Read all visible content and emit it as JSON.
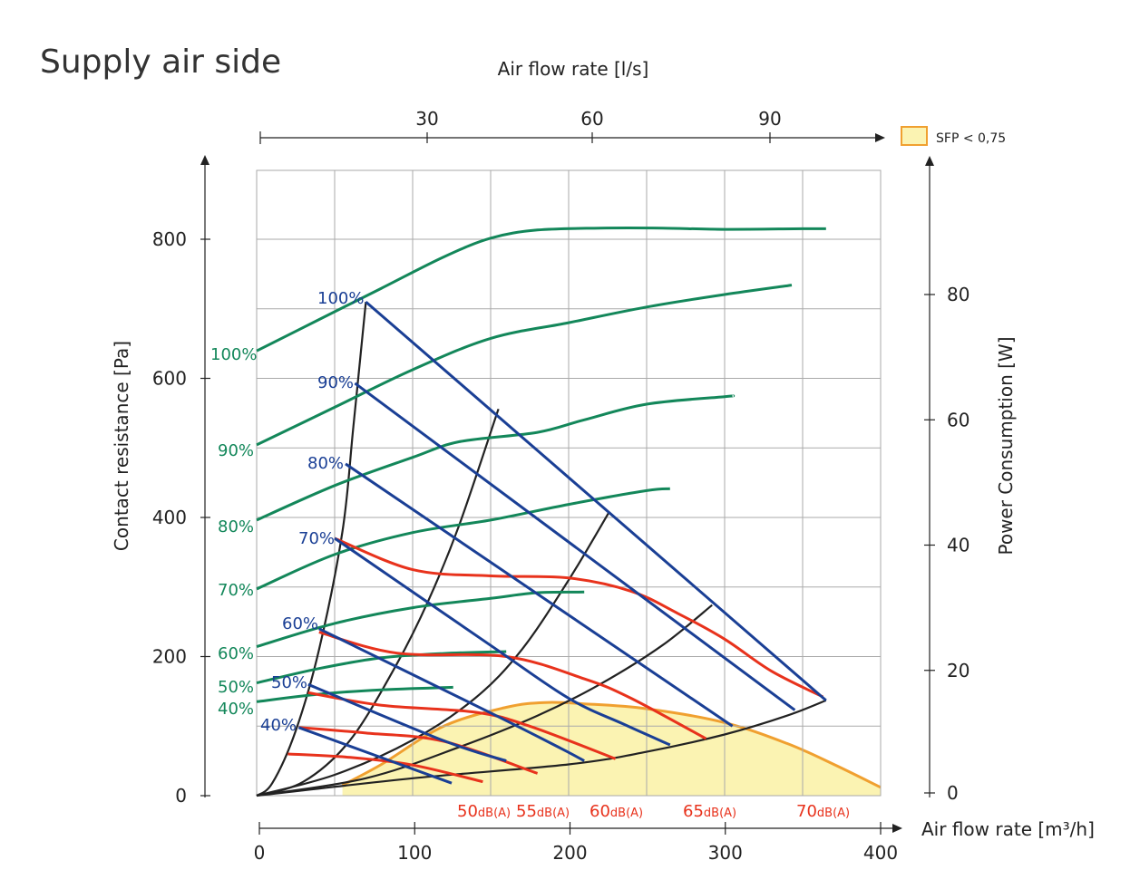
{
  "title": "Supply air side",
  "chart_data": {
    "type": "line",
    "title": "Supply air side",
    "xlabel_bottom": "Air flow rate [m³/h]",
    "xlabel_top": "Air flow rate [l/s]",
    "ylabel_left": "Contact resistance [Pa]",
    "ylabel_right": "Power Consumption [W]",
    "xlim": [
      0,
      400
    ],
    "ylim_left": [
      0,
      900
    ],
    "ylim_right": [
      0,
      100
    ],
    "x_ticks_bottom": [
      "0",
      "100",
      "200",
      "300",
      "400"
    ],
    "x_ticks_top": [
      "30",
      "60",
      "90"
    ],
    "y_ticks_left": [
      "0",
      "200",
      "400",
      "600",
      "800"
    ],
    "y_ticks_right": [
      "0",
      "20",
      "40",
      "60",
      "80"
    ],
    "grid": true,
    "legend": {
      "label": "SFP",
      "op": "<",
      "value": "0,75",
      "color": "#fbf3b2",
      "border": "#f0a030",
      "position": "top-right"
    },
    "colors": {
      "power": "#13875a",
      "pressure": "#1a3f95",
      "sound": "#e8321c",
      "system": "#222222",
      "sfp_fill": "#fbf3b2",
      "sfp_line": "#f0a030"
    },
    "power_series": [
      {
        "name": "100%",
        "axis": "right",
        "x": [
          0,
          40,
          80,
          120,
          150,
          180,
          220,
          260,
          300,
          350,
          365
        ],
        "y": [
          71,
          76,
          81,
          86,
          89,
          90.3,
          90.6,
          90.6,
          90.4,
          90.5,
          90.5
        ]
      },
      {
        "name": "90%",
        "axis": "right",
        "x": [
          0,
          50,
          100,
          150,
          200,
          250,
          300,
          343
        ],
        "y": [
          56,
          62,
          68,
          73,
          75.5,
          78,
          80,
          81.5
        ]
      },
      {
        "name": "80%",
        "axis": "right",
        "x": [
          0,
          50,
          100,
          130,
          180,
          210,
          250,
          300,
          305
        ],
        "y": [
          44,
          49.5,
          54,
          56.5,
          58,
          60,
          62.5,
          63.7,
          63.8
        ]
      },
      {
        "name": "70%",
        "axis": "right",
        "x": [
          0,
          50,
          100,
          150,
          200,
          250,
          265
        ],
        "y": [
          33,
          38.5,
          42,
          44,
          46.5,
          48.7,
          49
        ]
      },
      {
        "name": "60%",
        "axis": "right",
        "x": [
          0,
          50,
          100,
          150,
          180,
          210
        ],
        "y": [
          23.8,
          27.5,
          30,
          31.5,
          32.4,
          32.5
        ]
      },
      {
        "name": "50%",
        "axis": "right",
        "x": [
          0,
          40,
          80,
          120,
          160
        ],
        "y": [
          18,
          20.3,
          22,
          22.7,
          23
        ]
      },
      {
        "name": "40%",
        "axis": "right",
        "x": [
          0,
          40,
          80,
          126
        ],
        "y": [
          15,
          16.2,
          16.9,
          17.3
        ]
      }
    ],
    "pressure_series": [
      {
        "name": "100%",
        "axis": "left",
        "x": [
          70,
          365
        ],
        "y": [
          710,
          137
        ]
      },
      {
        "name": "90%",
        "axis": "left",
        "x": [
          63,
          345
        ],
        "y": [
          593,
          123
        ]
      },
      {
        "name": "80%",
        "axis": "left",
        "x": [
          57,
          305
        ],
        "y": [
          477,
          100
        ]
      },
      {
        "name": "70%",
        "axis": "left",
        "x": [
          50,
          150,
          200,
          235,
          265
        ],
        "y": [
          370,
          216,
          140,
          103,
          73
        ]
      },
      {
        "name": "60%",
        "axis": "left",
        "x": [
          40,
          150,
          195,
          210
        ],
        "y": [
          240,
          119,
          68,
          50
        ]
      },
      {
        "name": "50%",
        "axis": "left",
        "x": [
          33,
          120,
          160
        ],
        "y": [
          160,
          79,
          50
        ]
      },
      {
        "name": "40%",
        "axis": "left",
        "x": [
          27,
          125
        ],
        "y": [
          98,
          18
        ]
      }
    ],
    "sound_series": [
      {
        "name": "50dB(A)",
        "axis": "left",
        "x": [
          20,
          60,
          100,
          145
        ],
        "y": [
          60,
          55,
          44,
          20
        ]
      },
      {
        "name": "55dB(A)",
        "axis": "left",
        "x": [
          27,
          70,
          120,
          180
        ],
        "y": [
          98,
          90,
          78,
          32
        ]
      },
      {
        "name": "60dB(A)",
        "axis": "left",
        "x": [
          33,
          80,
          140,
          175,
          230
        ],
        "y": [
          148,
          130,
          120,
          100,
          53
        ]
      },
      {
        "name": "65dB(A)",
        "axis": "left",
        "x": [
          40,
          90,
          160,
          210,
          240,
          288
        ],
        "y": [
          235,
          205,
          200,
          168,
          140,
          82
        ]
      },
      {
        "name": "70dB(A)",
        "axis": "left",
        "x": [
          50,
          100,
          150,
          200,
          240,
          270,
          300,
          330,
          363
        ],
        "y": [
          370,
          325,
          316,
          313,
          294,
          262,
          225,
          179,
          142
        ]
      }
    ],
    "system_curves": [
      {
        "x": [
          0,
          10,
          25,
          40,
          55,
          62,
          70
        ],
        "y": [
          0,
          18,
          93,
          210,
          380,
          530,
          710
        ]
      },
      {
        "x": [
          0,
          30,
          60,
          90,
          110,
          130,
          155
        ],
        "y": [
          0,
          20,
          80,
          190,
          280,
          390,
          556
        ]
      },
      {
        "x": [
          0,
          50,
          100,
          140,
          170,
          200,
          226
        ],
        "y": [
          0,
          30,
          80,
          140,
          210,
          310,
          408
        ]
      },
      {
        "x": [
          0,
          70,
          130,
          180,
          220,
          260,
          292
        ],
        "y": [
          0,
          25,
          70,
          115,
          160,
          216,
          274
        ]
      },
      {
        "x": [
          0,
          100,
          200,
          250,
          300,
          340,
          365
        ],
        "y": [
          0,
          25,
          45,
          63,
          88,
          115,
          137
        ]
      }
    ],
    "sfp_area": {
      "label": "SFP < 0,75",
      "x": [
        55,
        80,
        120,
        160,
        185,
        210,
        250,
        300,
        340,
        370,
        400
      ],
      "y": [
        15,
        45,
        100,
        127,
        134,
        132,
        125,
        105,
        75,
        45,
        12
      ]
    }
  }
}
